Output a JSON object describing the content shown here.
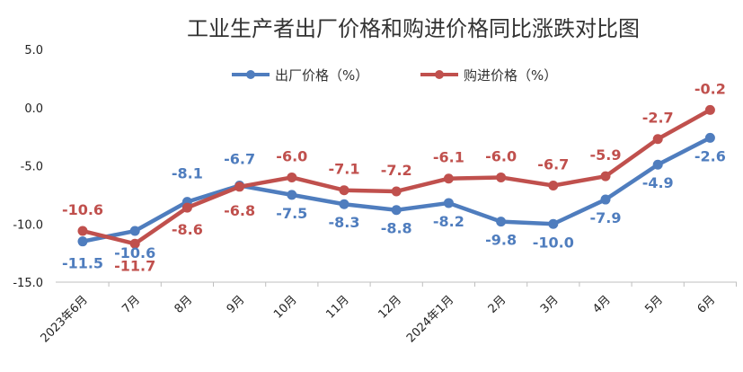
{
  "chart_data": {
    "type": "line",
    "title": "工业生产者出厂价格和购进价格同比涨跌对比图",
    "categories": [
      "2023年6月",
      "7月",
      "8月",
      "9月",
      "10月",
      "11月",
      "12月",
      "2024年1月",
      "2月",
      "3月",
      "4月",
      "5月",
      "6月"
    ],
    "y_ticks": [
      "5.0",
      "0.0",
      "-5.0",
      "-10.0",
      "-15.0"
    ],
    "ylim": [
      -15,
      5
    ],
    "grid": false,
    "legend_position": "top",
    "series": [
      {
        "name": "出厂价格（%）",
        "color": "#4F7DBE",
        "values": [
          -11.5,
          -10.6,
          -8.1,
          -6.7,
          -7.5,
          -8.3,
          -8.8,
          -8.2,
          -9.8,
          -10.0,
          -7.9,
          -4.9,
          -2.6
        ]
      },
      {
        "name": "购进价格（%）",
        "color": "#C0504D",
        "values": [
          -10.6,
          -11.7,
          -8.6,
          -6.8,
          -6.0,
          -7.1,
          -7.2,
          -6.1,
          -6.0,
          -6.7,
          -5.9,
          -2.7,
          -0.2
        ]
      }
    ]
  }
}
